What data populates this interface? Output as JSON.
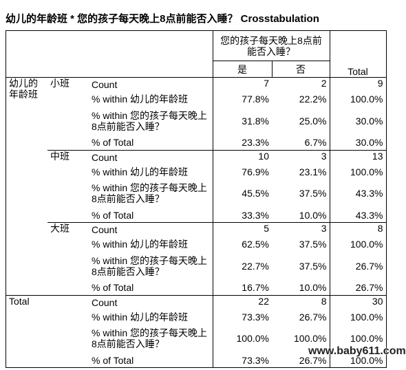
{
  "title": "幼儿的年龄班 * 您的孩子每天晚上8点前能否入睡？ Crosstabulation",
  "header": {
    "column_variable": "您的孩子每天晚上8点前能否入睡？",
    "columns": [
      "是",
      "否",
      "Total"
    ]
  },
  "row_variable": "幼儿的年龄班",
  "statistics": [
    "Count",
    "% within 幼儿的年龄班",
    "% within 您的孩子每天晚上8点前能否入睡？",
    "% of Total"
  ],
  "groups": [
    {
      "label": "小班",
      "rows": [
        [
          "7",
          "2",
          "9"
        ],
        [
          "77.8%",
          "22.2%",
          "100.0%"
        ],
        [
          "31.8%",
          "25.0%",
          "30.0%"
        ],
        [
          "23.3%",
          "6.7%",
          "30.0%"
        ]
      ]
    },
    {
      "label": "中班",
      "rows": [
        [
          "10",
          "3",
          "13"
        ],
        [
          "76.9%",
          "23.1%",
          "100.0%"
        ],
        [
          "45.5%",
          "37.5%",
          "43.3%"
        ],
        [
          "33.3%",
          "10.0%",
          "43.3%"
        ]
      ]
    },
    {
      "label": "大班",
      "rows": [
        [
          "5",
          "3",
          "8"
        ],
        [
          "62.5%",
          "37.5%",
          "100.0%"
        ],
        [
          "22.7%",
          "37.5%",
          "26.7%"
        ],
        [
          "16.7%",
          "10.0%",
          "26.7%"
        ]
      ]
    }
  ],
  "total": {
    "label": "Total",
    "rows": [
      [
        "22",
        "8",
        "30"
      ],
      [
        "73.3%",
        "26.7%",
        "100.0%"
      ],
      [
        "100.0%",
        "100.0%",
        "100.0%"
      ],
      [
        "73.3%",
        "26.7%",
        "100.0%"
      ]
    ]
  },
  "watermark": "www.baby611.com"
}
